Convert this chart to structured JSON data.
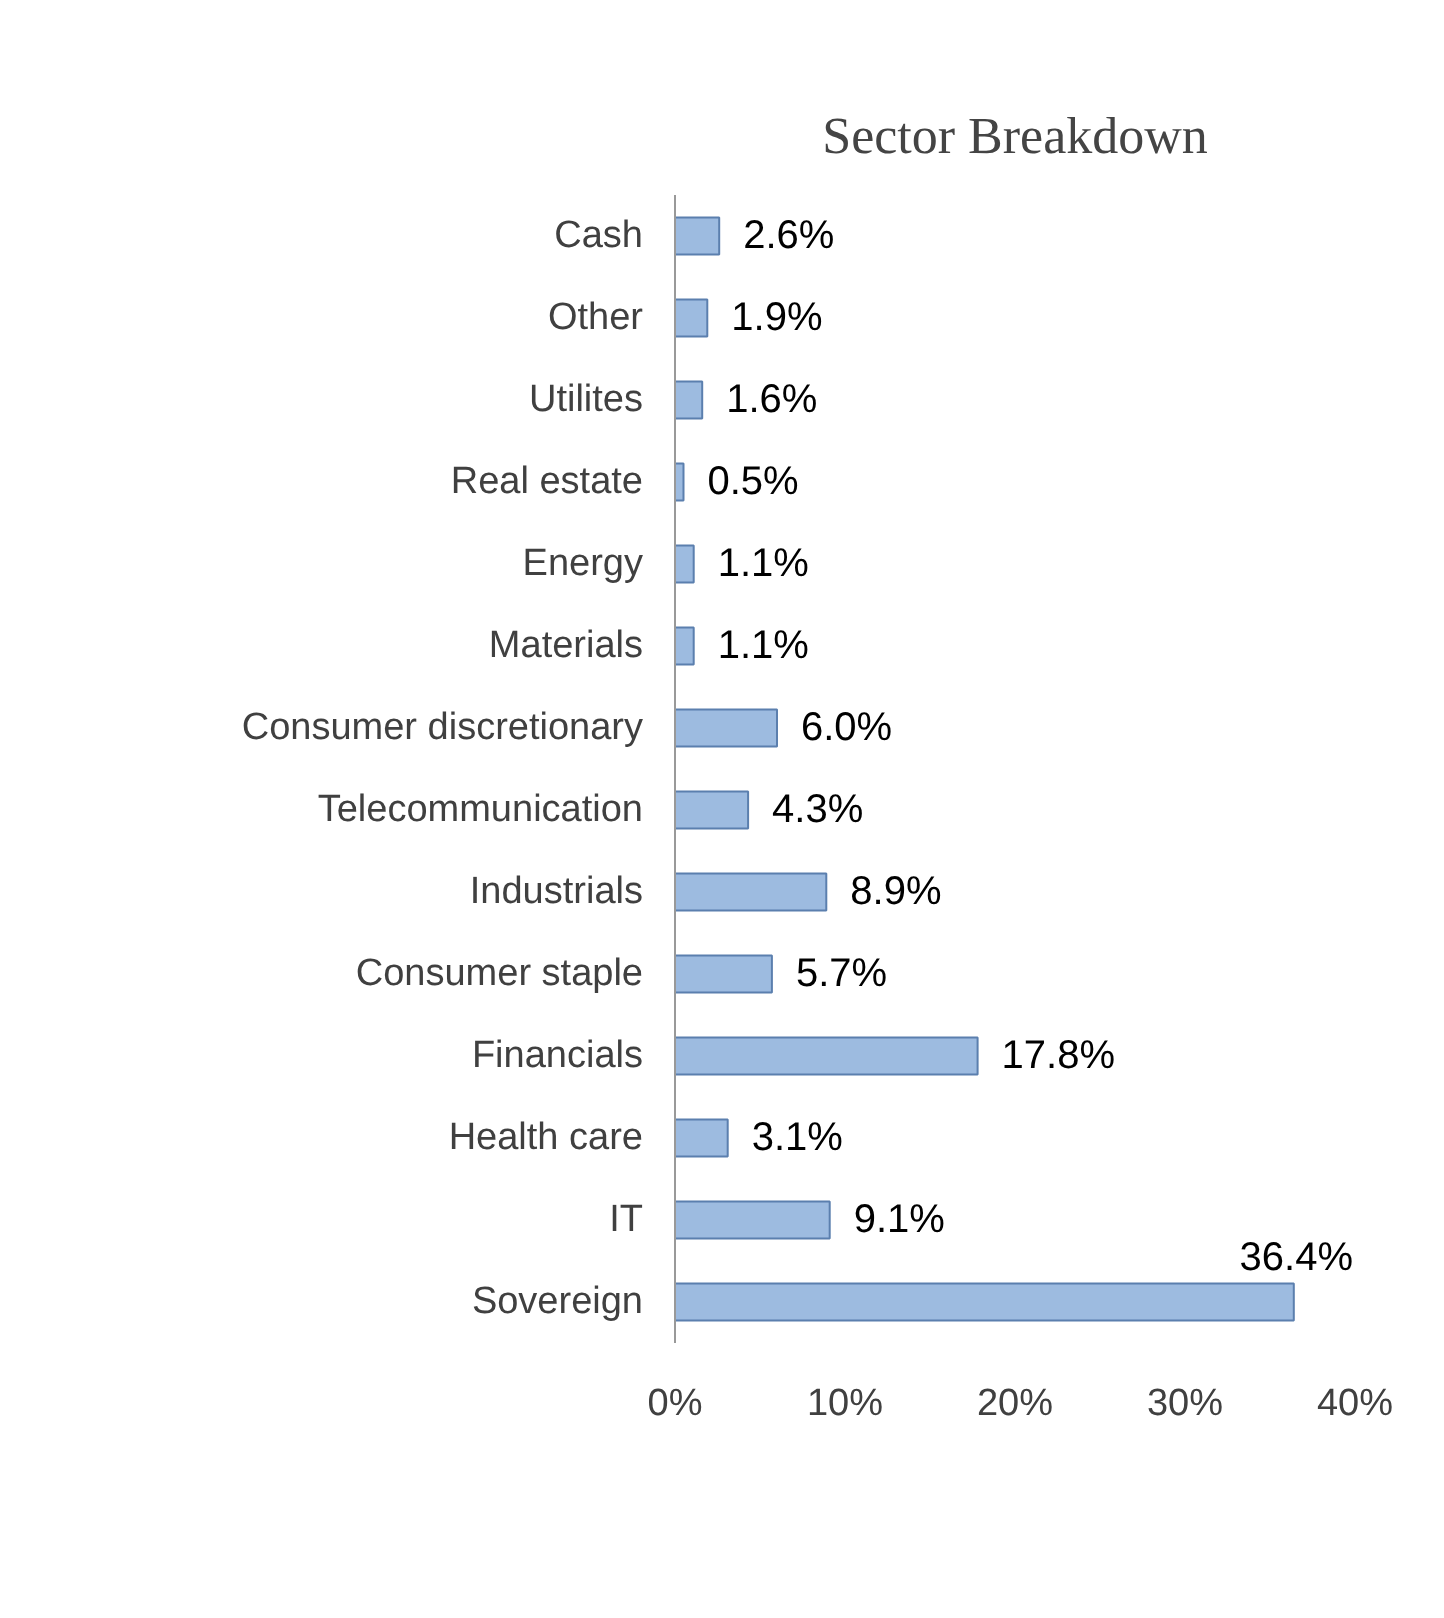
{
  "chart_data": {
    "type": "bar",
    "orientation": "horizontal",
    "title": "Sector Breakdown",
    "categories": [
      "Cash",
      "Other",
      "Utilites",
      "Real estate",
      "Energy",
      "Materials",
      "Consumer discretionary",
      "Telecommunication",
      "Industrials",
      "Consumer staple",
      "Financials",
      "Health care",
      "IT",
      "Sovereign"
    ],
    "values": [
      2.6,
      1.9,
      1.6,
      0.5,
      1.1,
      1.1,
      6.0,
      4.3,
      8.9,
      5.7,
      17.8,
      3.1,
      9.1,
      36.4
    ],
    "value_labels": [
      "2.6%",
      "1.9%",
      "1.6%",
      "0.5%",
      "1.1%",
      "1.1%",
      "6.0%",
      "4.3%",
      "8.9%",
      "5.7%",
      "17.8%",
      "3.1%",
      "9.1%",
      "36.4%"
    ],
    "color": "#9dbbe0",
    "xlim": [
      0,
      40
    ],
    "xticks": [
      {
        "value": 0,
        "label": "0%"
      },
      {
        "value": 10,
        "label": "10%"
      },
      {
        "value": 20,
        "label": "20%"
      },
      {
        "value": 30,
        "label": "30%"
      },
      {
        "value": 40,
        "label": "40%"
      }
    ],
    "grid": false
  }
}
